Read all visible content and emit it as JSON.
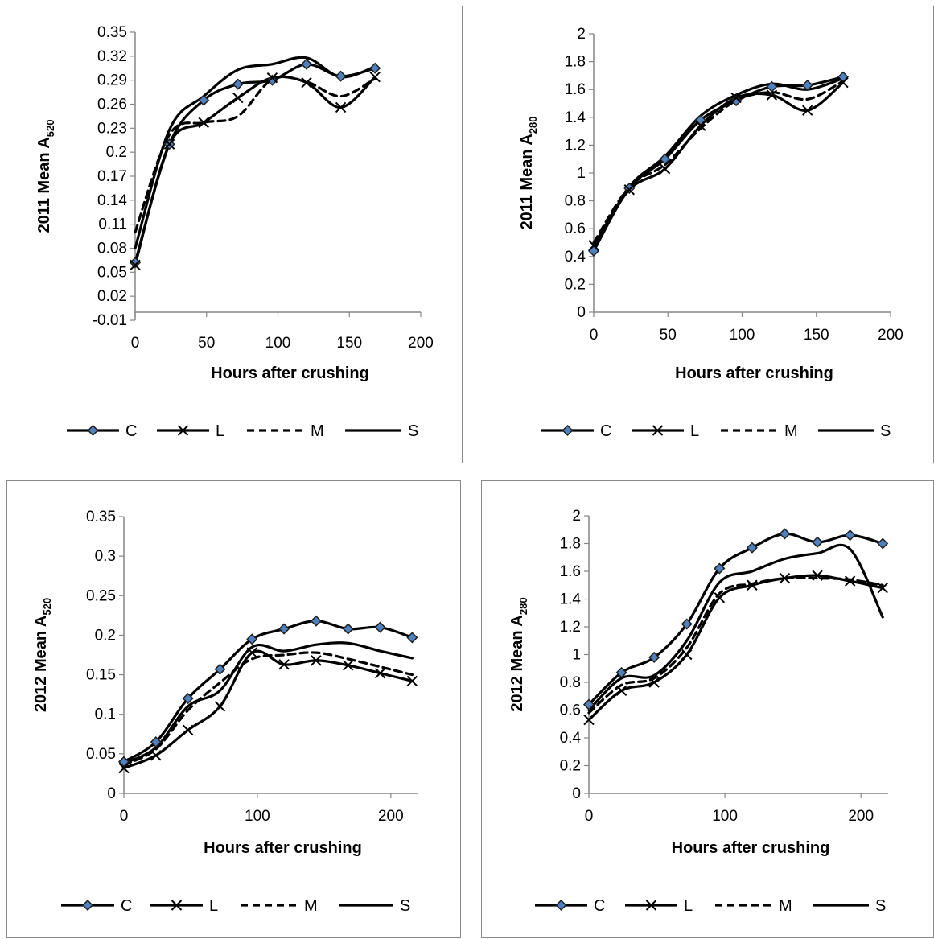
{
  "chart_data": [
    {
      "type": "line",
      "ylabel": "2011  Mean A",
      "ylabel_sub": "520",
      "xlabel": "Hours after crushing",
      "xlim": [
        0,
        200
      ],
      "ylim": [
        -0.01,
        0.35
      ],
      "xticks": [
        0,
        50,
        100,
        150,
        200
      ],
      "xtick_labels": [
        "0",
        "50",
        "100",
        "150",
        "200"
      ],
      "yticks": [
        -0.01,
        0.02,
        0.05,
        0.08,
        0.11,
        0.14,
        0.17,
        0.2,
        0.23,
        0.26,
        0.29,
        0.32,
        0.35
      ],
      "ytick_labels": [
        "-0.01",
        "0.02",
        "0.05",
        "0.08",
        "0.11",
        "0.14",
        "0.17",
        "0.2",
        "0.23",
        "0.26",
        "0.29",
        "0.32",
        "0.35"
      ],
      "grid": false,
      "legend": "bottom",
      "series": [
        {
          "name": "C",
          "marker": "diamond",
          "dash": "solid",
          "x": [
            0,
            24,
            48,
            72,
            96,
            120,
            144,
            168
          ],
          "y": [
            0.062,
            0.21,
            0.265,
            0.285,
            0.29,
            0.31,
            0.295,
            0.305
          ]
        },
        {
          "name": "L",
          "marker": "x",
          "dash": "solid",
          "x": [
            0,
            24,
            48,
            72,
            96,
            120,
            144,
            168
          ],
          "y": [
            0.059,
            0.21,
            0.237,
            0.268,
            0.293,
            0.287,
            0.256,
            0.294
          ]
        },
        {
          "name": "M",
          "marker": "none",
          "dash": "dashed",
          "x": [
            0,
            24,
            48,
            72,
            96,
            120,
            144,
            168
          ],
          "y": [
            0.1,
            0.222,
            0.237,
            0.245,
            0.291,
            0.288,
            0.27,
            0.292
          ]
        },
        {
          "name": "S",
          "marker": "none",
          "dash": "solid",
          "x": [
            0,
            24,
            48,
            72,
            96,
            120,
            144,
            168
          ],
          "y": [
            0.08,
            0.228,
            0.27,
            0.303,
            0.31,
            0.318,
            0.294,
            0.307
          ]
        }
      ]
    },
    {
      "type": "line",
      "ylabel": "2011 Mean A",
      "ylabel_sub": "280",
      "xlabel": "Hours after crushing",
      "xlim": [
        0,
        200
      ],
      "ylim": [
        0,
        2
      ],
      "xticks": [
        0,
        50,
        100,
        150,
        200
      ],
      "xtick_labels": [
        "0",
        "50",
        "100",
        "150",
        "200"
      ],
      "yticks": [
        0,
        0.2,
        0.4,
        0.6,
        0.8,
        1,
        1.2,
        1.4,
        1.6,
        1.8,
        2
      ],
      "ytick_labels": [
        "0",
        "0.2",
        "0.4",
        "0.6",
        "0.8",
        "1",
        "1.2",
        "1.4",
        "1.6",
        "1.8",
        "2"
      ],
      "grid": false,
      "legend": "bottom",
      "series": [
        {
          "name": "C",
          "marker": "diamond",
          "dash": "solid",
          "x": [
            0,
            24,
            48,
            72,
            96,
            120,
            144,
            168
          ],
          "y": [
            0.44,
            0.89,
            1.1,
            1.38,
            1.52,
            1.62,
            1.63,
            1.69
          ]
        },
        {
          "name": "L",
          "marker": "x",
          "dash": "solid",
          "x": [
            0,
            24,
            48,
            72,
            96,
            120,
            144,
            168
          ],
          "y": [
            0.48,
            0.88,
            1.03,
            1.34,
            1.54,
            1.56,
            1.45,
            1.65
          ]
        },
        {
          "name": "M",
          "marker": "none",
          "dash": "dashed",
          "x": [
            0,
            24,
            48,
            72,
            96,
            120,
            144,
            168
          ],
          "y": [
            0.5,
            0.9,
            1.06,
            1.32,
            1.52,
            1.58,
            1.53,
            1.66
          ]
        },
        {
          "name": "S",
          "marker": "none",
          "dash": "solid",
          "x": [
            0,
            24,
            48,
            72,
            96,
            120,
            144,
            168
          ],
          "y": [
            0.46,
            0.9,
            1.12,
            1.41,
            1.56,
            1.64,
            1.6,
            1.68
          ]
        }
      ]
    },
    {
      "type": "line",
      "ylabel": "2012  Mean A",
      "ylabel_sub": "520",
      "xlabel": "Hours after crushing",
      "xlim": [
        0,
        220
      ],
      "ylim": [
        0,
        0.35
      ],
      "xticks": [
        0,
        100,
        200
      ],
      "xtick_labels": [
        "0",
        "100",
        "200"
      ],
      "yticks": [
        0,
        0.05,
        0.1,
        0.15,
        0.2,
        0.25,
        0.3,
        0.35
      ],
      "ytick_labels": [
        "0",
        "0.05",
        "0.1",
        "0.15",
        "0.2",
        "0.25",
        "0.3",
        "0.35"
      ],
      "grid": false,
      "legend": "bottom",
      "series": [
        {
          "name": "C",
          "marker": "diamond",
          "dash": "solid",
          "x": [
            0,
            24,
            48,
            72,
            96,
            120,
            144,
            168,
            192,
            216
          ],
          "y": [
            0.04,
            0.065,
            0.12,
            0.157,
            0.195,
            0.208,
            0.218,
            0.208,
            0.21,
            0.197
          ]
        },
        {
          "name": "L",
          "marker": "x",
          "dash": "solid",
          "x": [
            0,
            24,
            48,
            72,
            96,
            120,
            144,
            168,
            192,
            216
          ],
          "y": [
            0.032,
            0.048,
            0.08,
            0.11,
            0.178,
            0.163,
            0.168,
            0.162,
            0.152,
            0.142
          ]
        },
        {
          "name": "M",
          "marker": "none",
          "dash": "dashed",
          "x": [
            0,
            24,
            48,
            72,
            96,
            120,
            144,
            168,
            192,
            216
          ],
          "y": [
            0.036,
            0.056,
            0.105,
            0.14,
            0.17,
            0.175,
            0.178,
            0.17,
            0.16,
            0.15
          ]
        },
        {
          "name": "S",
          "marker": "none",
          "dash": "solid",
          "x": [
            0,
            24,
            48,
            72,
            96,
            120,
            144,
            168,
            192,
            216
          ],
          "y": [
            0.038,
            0.058,
            0.11,
            0.13,
            0.185,
            0.18,
            0.188,
            0.19,
            0.18,
            0.171
          ]
        }
      ]
    },
    {
      "type": "line",
      "ylabel": "2012  Mean A",
      "ylabel_sub": "280",
      "xlabel": "Hours after crushing",
      "xlim": [
        0,
        220
      ],
      "ylim": [
        0,
        2
      ],
      "xticks": [
        0,
        100,
        200
      ],
      "xtick_labels": [
        "0",
        "100",
        "200"
      ],
      "yticks": [
        0,
        0.2,
        0.4,
        0.6,
        0.8,
        1,
        1.2,
        1.4,
        1.6,
        1.8,
        2
      ],
      "ytick_labels": [
        "0",
        "0.2",
        "0.4",
        "0.6",
        "0.8",
        "1",
        "1.2",
        "1.4",
        "1.6",
        "1.8",
        "2"
      ],
      "grid": false,
      "legend": "bottom",
      "series": [
        {
          "name": "C",
          "marker": "diamond",
          "dash": "solid",
          "x": [
            0,
            24,
            48,
            72,
            96,
            120,
            144,
            168,
            192,
            216
          ],
          "y": [
            0.64,
            0.87,
            0.98,
            1.22,
            1.62,
            1.77,
            1.87,
            1.81,
            1.86,
            1.8
          ]
        },
        {
          "name": "L",
          "marker": "x",
          "dash": "solid",
          "x": [
            0,
            24,
            48,
            72,
            96,
            120,
            144,
            168,
            192,
            216
          ],
          "y": [
            0.53,
            0.74,
            0.8,
            1.0,
            1.41,
            1.5,
            1.55,
            1.57,
            1.53,
            1.48
          ]
        },
        {
          "name": "M",
          "marker": "none",
          "dash": "dashed",
          "x": [
            0,
            24,
            48,
            72,
            96,
            120,
            144,
            168,
            192,
            216
          ],
          "y": [
            0.58,
            0.78,
            0.83,
            1.05,
            1.44,
            1.51,
            1.55,
            1.55,
            1.54,
            1.5
          ]
        },
        {
          "name": "S",
          "marker": "none",
          "dash": "solid",
          "x": [
            0,
            24,
            48,
            72,
            96,
            120,
            144,
            168,
            192,
            216
          ],
          "y": [
            0.6,
            0.83,
            0.85,
            1.1,
            1.52,
            1.6,
            1.69,
            1.73,
            1.76,
            1.27
          ]
        }
      ]
    }
  ]
}
